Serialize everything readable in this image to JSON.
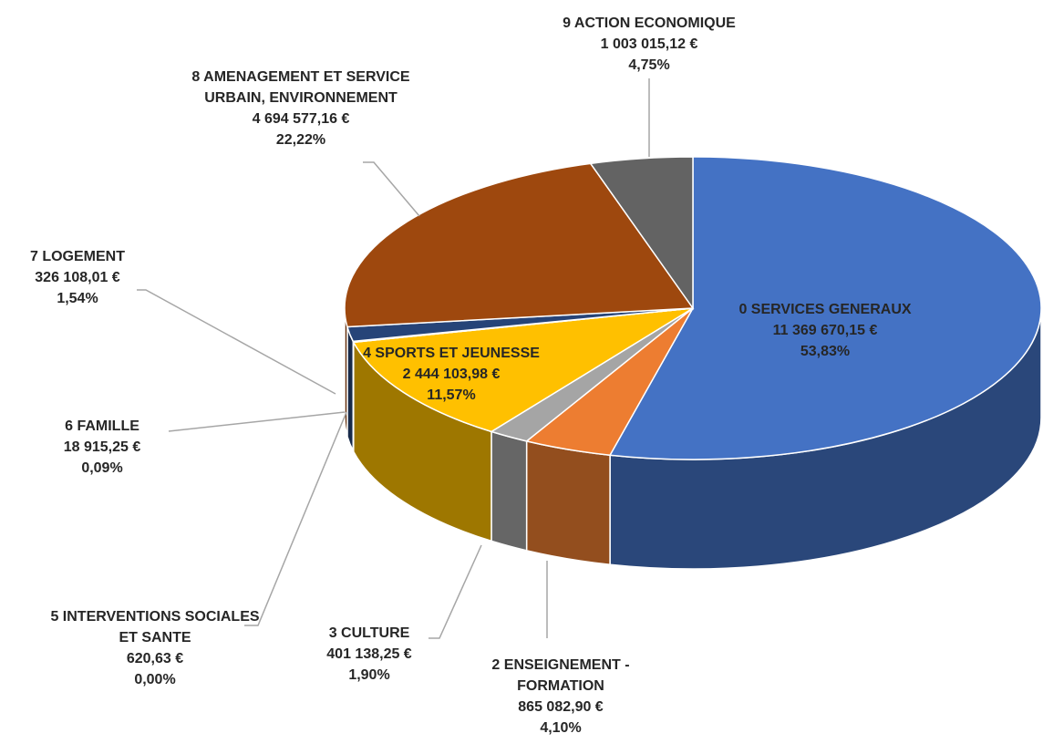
{
  "chart_data": {
    "type": "pie3d",
    "categories": [
      "0 SERVICES GENERAUX",
      "2 ENSEIGNEMENT - FORMATION",
      "3 CULTURE",
      "4 SPORTS ET JEUNESSE",
      "5 INTERVENTIONS SOCIALES ET SANTE",
      "6 FAMILLE",
      "7 LOGEMENT",
      "8 AMENAGEMENT ET SERVICE URBAIN, ENVIRONNEMENT",
      "9 ACTION ECONOMIQUE"
    ],
    "values": [
      11369670.15,
      865082.9,
      401138.25,
      2444103.98,
      620.63,
      18915.25,
      326108.01,
      4694577.16,
      1003015.12
    ],
    "value_labels": [
      "11 369 670,15 €",
      "865 082,90 €",
      "401 138,25 €",
      "2 444 103,98 €",
      "620,63 €",
      "18 915,25 €",
      "326 108,01 €",
      "4 694 577,16 €",
      "1 003 015,12 €"
    ],
    "percentages": [
      53.83,
      4.1,
      1.9,
      11.57,
      0.0,
      0.09,
      1.54,
      22.22,
      4.75
    ],
    "percentage_labels": [
      "53,83%",
      "4,10%",
      "1,90%",
      "11,57%",
      "0,00%",
      "0,09%",
      "1,54%",
      "22,22%",
      "4,75%"
    ],
    "colors": [
      "#4472c4",
      "#ed7d31",
      "#a5a5a5",
      "#ffc000",
      "#5b9bd5",
      "#70ad47",
      "#264478",
      "#9e480e",
      "#636363"
    ]
  }
}
